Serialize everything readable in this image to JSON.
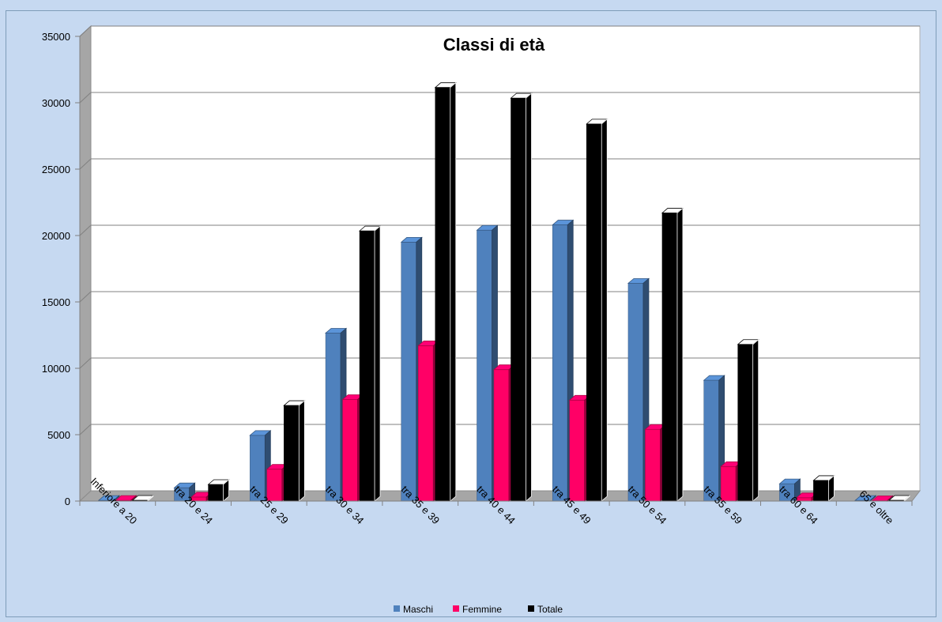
{
  "chart_data": {
    "type": "bar",
    "title": "Classi di età",
    "xlabel": "",
    "ylabel": "",
    "ylim": [
      0,
      35000
    ],
    "yticks": [
      0,
      5000,
      10000,
      15000,
      20000,
      25000,
      30000,
      35000
    ],
    "grid": true,
    "legend_position": "bottom",
    "categories": [
      "Inferiore a 20",
      "tra 20 e 24",
      "tra 25 e 29",
      "tra 30 e 34",
      "tra 35 e 39",
      "tra 40 e 44",
      "tra 45 e 49",
      "tra 50 e 54",
      "tra 55 e 59",
      "tra 60 e 64",
      "65 e oltre"
    ],
    "series": [
      {
        "name": "Maschi",
        "color": "#4f81bd",
        "values": [
          50,
          1000,
          4950,
          12650,
          19500,
          20400,
          20800,
          16400,
          9100,
          1300,
          50
        ]
      },
      {
        "name": "Femmine",
        "color": "#ff0066",
        "values": [
          50,
          300,
          2400,
          7650,
          11700,
          9900,
          7600,
          5400,
          2600,
          250,
          30
        ]
      },
      {
        "name": "Totale",
        "color": "#000000",
        "values": [
          60,
          1250,
          7200,
          20350,
          31150,
          30350,
          28400,
          21700,
          11800,
          1550,
          60
        ]
      }
    ]
  }
}
